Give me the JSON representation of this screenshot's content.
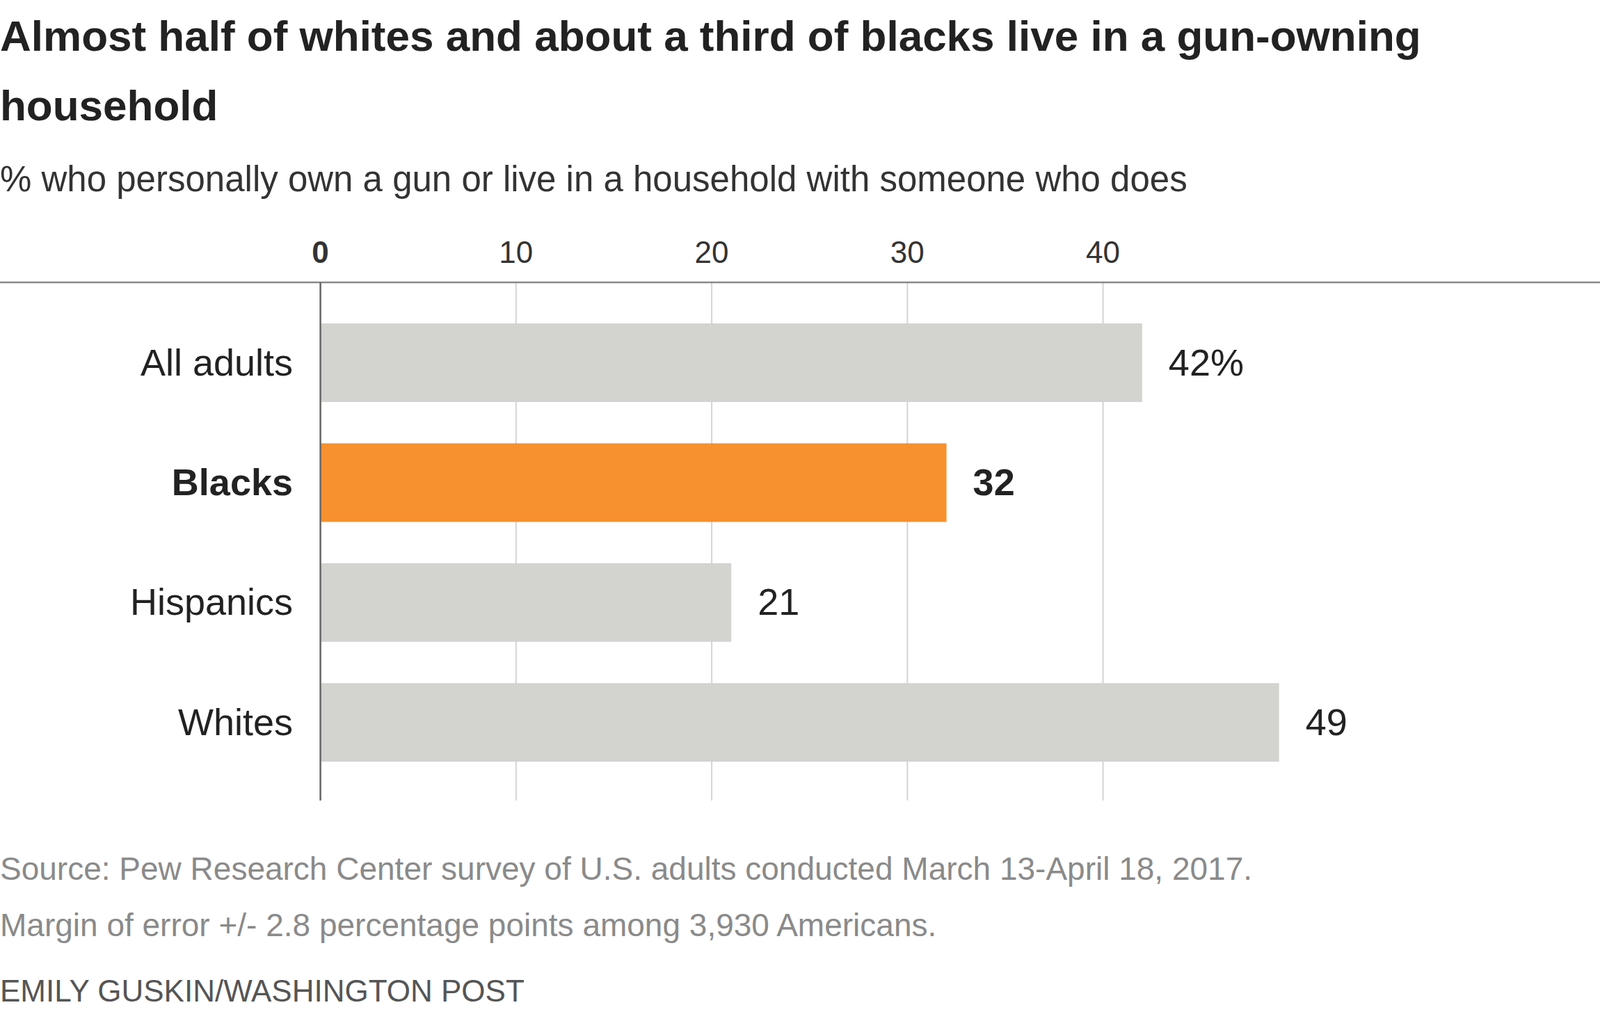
{
  "chart_data": {
    "type": "bar",
    "orientation": "horizontal",
    "title": "Almost half of whites and about a third of blacks live in a gun-owning household",
    "subtitle": "% who personally own a gun or live in a household with someone who does",
    "categories": [
      "All adults",
      "Blacks",
      "Hispanics",
      "Whites"
    ],
    "values": [
      42,
      32,
      21,
      49
    ],
    "value_labels": [
      "42%",
      "32",
      "21",
      "49"
    ],
    "colors": [
      "#d3d3cf",
      "#f7902f",
      "#d3d3cf",
      "#d3d3cf"
    ],
    "xlim": [
      0,
      50
    ],
    "xticks": [
      0,
      10,
      20,
      30,
      40
    ],
    "grid": true,
    "data_labels": true,
    "source": "Source: Pew Research Center survey of U.S. adults conducted March 13-April 18, 2017.",
    "note": "Margin of error +/- 2.8 percentage points among 3,930 Americans.",
    "credit": "EMILY GUSKIN/WASHINGTON POST"
  }
}
